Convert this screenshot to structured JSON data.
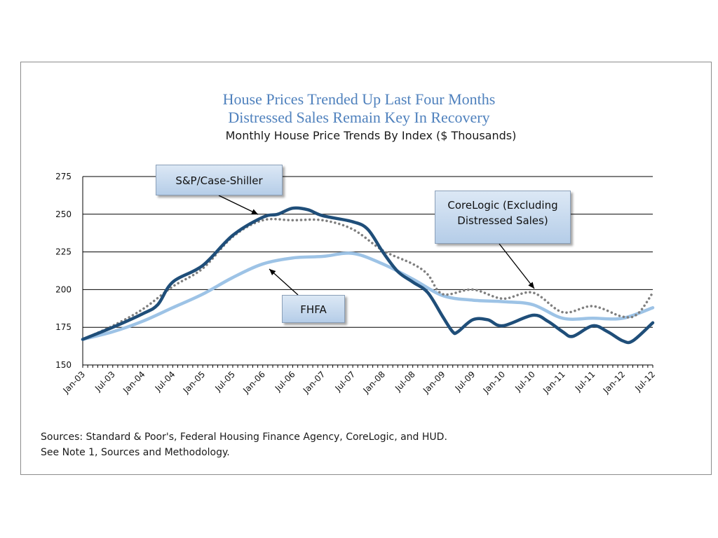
{
  "title_line1": "House Prices Trended Up Last Four Months",
  "title_line2": "Distressed Sales Remain Key In Recovery",
  "subtitle": "Monthly House Price Trends By Index ($ Thousands)",
  "callouts": {
    "case_shiller": "S&P/Case-Shiller",
    "corelogic_line1": "CoreLogic (Excluding",
    "corelogic_line2": "Distressed Sales)",
    "fhfa": "FHFA"
  },
  "sources_line1": "Sources:  Standard & Poor's, Federal Housing Finance Agency, CoreLogic, and HUD.",
  "sources_line2": "See Note 1, Sources and Methodology.",
  "colors": {
    "case_shiller": "#1f4e79",
    "fhfa": "#9dc3e6",
    "corelogic": "#7f7f7f",
    "grid": "#000000"
  },
  "chart_data": {
    "type": "line",
    "title": "House Prices Trended Up Last Four Months / Distressed Sales Remain Key In Recovery",
    "subtitle": "Monthly House Price Trends By Index ($ Thousands)",
    "xlabel": "",
    "ylabel": "",
    "ylim": [
      150,
      275
    ],
    "yticks": [
      150,
      175,
      200,
      225,
      250,
      275
    ],
    "grid": true,
    "x_tick_labels": [
      "Jan-03",
      "Jul-03",
      "Jan-04",
      "Jul-04",
      "Jan-05",
      "Jul-05",
      "Jan-06",
      "Jul-06",
      "Jan-07",
      "Jul-07",
      "Jan-08",
      "Jul-08",
      "Jan-09",
      "Jul-09",
      "Jan-10",
      "Jul-10",
      "Jan-11",
      "Jul-11",
      "Jan-12",
      "Jul-12"
    ],
    "series": [
      {
        "name": "S&P/Case-Shiller",
        "key": "case_shiller",
        "style": "solid-thick",
        "points": [
          [
            "Jan-03",
            167
          ],
          [
            "Jul-03",
            175
          ],
          [
            "Jan-04",
            184
          ],
          [
            "Apr-04",
            190
          ],
          [
            "Jul-04",
            205
          ],
          [
            "Jan-05",
            216
          ],
          [
            "Jul-05",
            236
          ],
          [
            "Jan-06",
            248
          ],
          [
            "Apr-06",
            250
          ],
          [
            "Jul-06",
            254
          ],
          [
            "Oct-06",
            253
          ],
          [
            "Jan-07",
            249
          ],
          [
            "Jul-07",
            245
          ],
          [
            "Oct-07",
            240
          ],
          [
            "Jan-08",
            225
          ],
          [
            "Apr-08",
            212
          ],
          [
            "Jul-08",
            205
          ],
          [
            "Oct-08",
            198
          ],
          [
            "Jan-09",
            182
          ],
          [
            "Mar-09",
            172
          ],
          [
            "Apr-09",
            172
          ],
          [
            "Jul-09",
            180
          ],
          [
            "Oct-09",
            180
          ],
          [
            "Jan-10",
            176
          ],
          [
            "Jul-10",
            183
          ],
          [
            "Oct-10",
            179
          ],
          [
            "Jan-11",
            172
          ],
          [
            "Mar-11",
            169
          ],
          [
            "Jul-11",
            176
          ],
          [
            "Oct-11",
            172
          ],
          [
            "Jan-12",
            166
          ],
          [
            "Mar-12",
            166
          ],
          [
            "Jul-12",
            178
          ]
        ]
      },
      {
        "name": "FHFA",
        "key": "fhfa",
        "style": "solid-light",
        "points": [
          [
            "Jan-03",
            167
          ],
          [
            "Jul-03",
            172
          ],
          [
            "Jan-04",
            179
          ],
          [
            "Jul-04",
            188
          ],
          [
            "Jan-05",
            197
          ],
          [
            "Jul-05",
            208
          ],
          [
            "Jan-06",
            217
          ],
          [
            "Jul-06",
            221
          ],
          [
            "Jan-07",
            222
          ],
          [
            "Jul-07",
            224
          ],
          [
            "Jan-08",
            217
          ],
          [
            "Jul-08",
            207
          ],
          [
            "Jan-09",
            196
          ],
          [
            "Jul-09",
            193
          ],
          [
            "Jan-10",
            192
          ],
          [
            "Jul-10",
            190
          ],
          [
            "Jan-11",
            181
          ],
          [
            "Jul-11",
            181
          ],
          [
            "Jan-12",
            181
          ],
          [
            "Jul-12",
            188
          ]
        ]
      },
      {
        "name": "CoreLogic (Excluding Distressed Sales)",
        "key": "corelogic",
        "style": "dotted",
        "points": [
          [
            "Jan-03",
            167
          ],
          [
            "Jul-03",
            176
          ],
          [
            "Jan-04",
            187
          ],
          [
            "Jul-04",
            202
          ],
          [
            "Jan-05",
            214
          ],
          [
            "Jul-05",
            235
          ],
          [
            "Jan-06",
            246
          ],
          [
            "Jul-06",
            246
          ],
          [
            "Jan-07",
            246
          ],
          [
            "Jul-07",
            240
          ],
          [
            "Jan-08",
            226
          ],
          [
            "Jul-08",
            217
          ],
          [
            "Oct-08",
            210
          ],
          [
            "Jan-09",
            197
          ],
          [
            "Jul-09",
            200
          ],
          [
            "Jan-10",
            194
          ],
          [
            "Jul-10",
            198
          ],
          [
            "Jan-11",
            185
          ],
          [
            "Jul-11",
            189
          ],
          [
            "Jan-12",
            182
          ],
          [
            "Apr-12",
            184
          ],
          [
            "Jul-12",
            198
          ]
        ]
      }
    ]
  }
}
